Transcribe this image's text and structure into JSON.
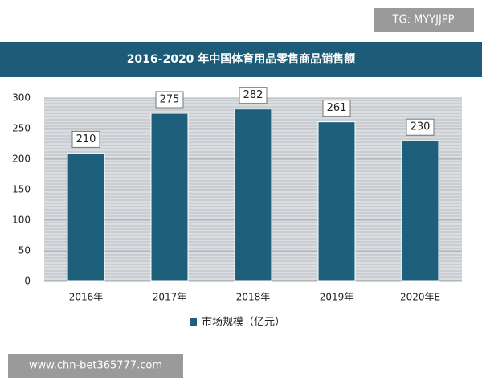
{
  "watermark_top": "TG: MYYJJPP",
  "watermark_bottom": "www.chn-bet365777.com",
  "chart_data": {
    "type": "bar",
    "title": "2016-2020 年中国体育用品零售商品销售额",
    "categories": [
      "2016年",
      "2017年",
      "2018年",
      "2019年",
      "2020年E"
    ],
    "series": [
      {
        "name": "市场规模（亿元）",
        "color": "#1e5f7c",
        "values": [
          210,
          275,
          282,
          261,
          230
        ]
      }
    ],
    "ylim": [
      0,
      300
    ],
    "yticks": [
      0,
      50,
      100,
      150,
      200,
      250,
      300
    ],
    "grid": true
  }
}
